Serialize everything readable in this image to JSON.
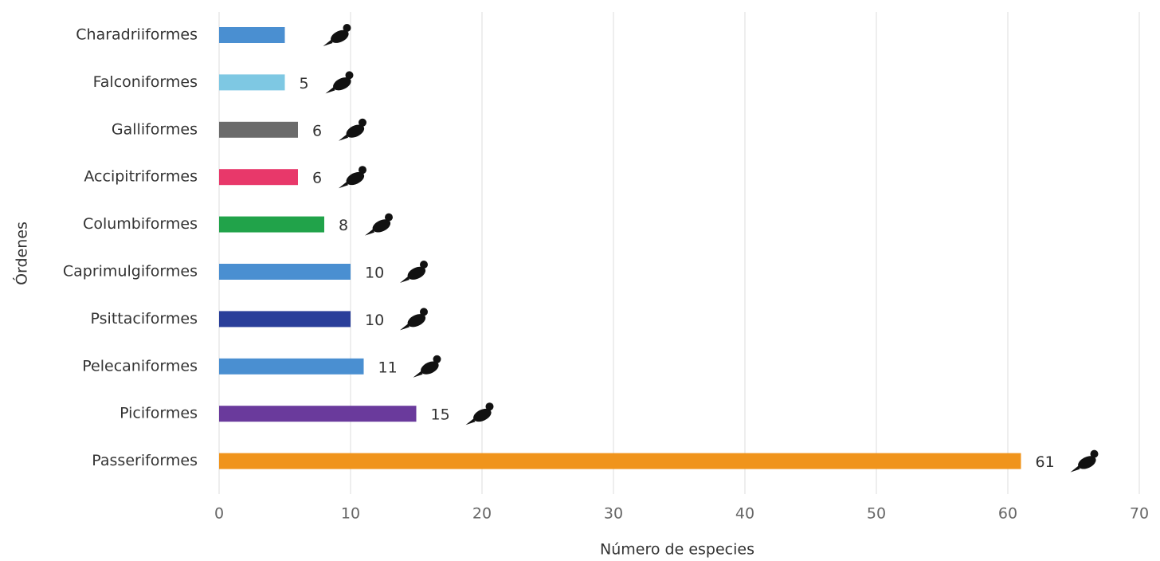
{
  "chart_data": {
    "type": "hbar",
    "x_label": "Número de especies",
    "y_label": "Órdenes",
    "categories": [
      "Charadriiformes",
      "Falconiformes",
      "Galliformes",
      "Accipitriformes",
      "Columbiformes",
      "Caprimulgiformes",
      "Psittaciformes",
      "Pelecaniformes",
      "Piciformes",
      "Passeriformes"
    ],
    "values": [
      5,
      5,
      6,
      6,
      8,
      10,
      10,
      11,
      15,
      61
    ],
    "value_labels": [
      null,
      "5",
      "6",
      "6",
      "8",
      "10",
      "10",
      "11",
      "15",
      "61"
    ],
    "colors": [
      "#4a8fd1",
      "#7ec8e3",
      "#6b6b6b",
      "#e8386a",
      "#21a34a",
      "#4a8fd1",
      "#2a3f9a",
      "#4a8fd1",
      "#6a3a9c",
      "#f0941c"
    ],
    "xlim": [
      0,
      70
    ],
    "xticks": [
      0,
      10,
      20,
      30,
      40,
      50,
      60,
      70
    ],
    "grid": true
  }
}
